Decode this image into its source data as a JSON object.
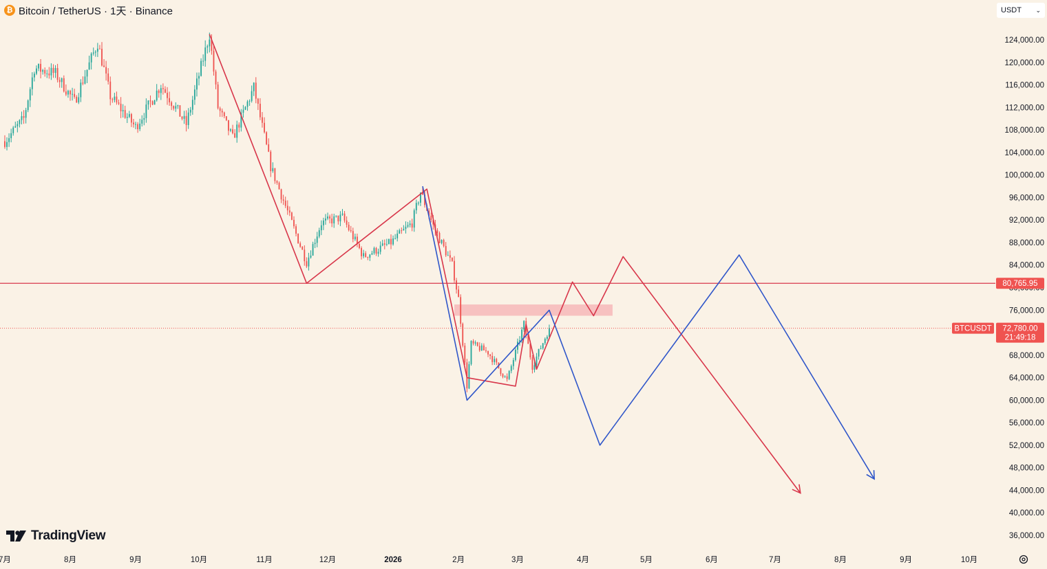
{
  "header": {
    "coin_symbol": "₿",
    "title": "Bitcoin / TetherUS · 1天 · Binance"
  },
  "currency_selector": {
    "value": "USDT"
  },
  "logo": {
    "text": "TradingView"
  },
  "colors": {
    "background": "#faf2e6",
    "bullish": "#26a69a",
    "bearish": "#ef5350",
    "red_projection": "#d8364a",
    "blue_projection": "#2f56c9",
    "zone": "#f6b8b8"
  },
  "chart_data": {
    "type": "candlestick",
    "symbol": "BTCUSDT",
    "ylim": [
      34000,
      129000
    ],
    "y_ticks": [
      36000,
      40000,
      44000,
      48000,
      52000,
      56000,
      60000,
      64000,
      68000,
      72000,
      76000,
      80000,
      84000,
      88000,
      92000,
      96000,
      100000,
      104000,
      108000,
      112000,
      116000,
      120000,
      124000
    ],
    "y_tick_labels": [
      "36,000.00",
      "40,000.00",
      "44,000.00",
      "48,000.00",
      "52,000.00",
      "56,000.00",
      "60,000.00",
      "64,000.00",
      "68,000.00",
      "72,000.00",
      "76,000.00",
      "80,000.00",
      "84,000.00",
      "88,000.00",
      "92,000.00",
      "96,000.00",
      "100,000.00",
      "104,000.00",
      "108,000.00",
      "112,000.00",
      "116,000.00",
      "120,000.00",
      "124,000.00"
    ],
    "x_labels": [
      {
        "label": "7月",
        "date": "2025-07-01"
      },
      {
        "label": "8月",
        "date": "2025-08-01"
      },
      {
        "label": "9月",
        "date": "2025-09-01"
      },
      {
        "label": "10月",
        "date": "2025-10-01"
      },
      {
        "label": "11月",
        "date": "2025-11-01"
      },
      {
        "label": "12月",
        "date": "2025-12-01"
      },
      {
        "label": "2026",
        "date": "2026-01-01",
        "bold": true
      },
      {
        "label": "2月",
        "date": "2026-02-01"
      },
      {
        "label": "3月",
        "date": "2026-03-01"
      },
      {
        "label": "4月",
        "date": "2026-04-01"
      },
      {
        "label": "5月",
        "date": "2026-05-01"
      },
      {
        "label": "6月",
        "date": "2026-06-01"
      },
      {
        "label": "7月",
        "date": "2026-07-01"
      },
      {
        "label": "8月",
        "date": "2026-08-01"
      },
      {
        "label": "9月",
        "date": "2026-09-01"
      },
      {
        "label": "10月",
        "date": "2026-10-01"
      }
    ],
    "horizontal_line": {
      "value": 80765.95,
      "label": "80,765.95"
    },
    "current_price": {
      "symbol_label": "BTCUSDT",
      "value": 72780,
      "label": "72,780.00",
      "countdown": "21:49:18"
    },
    "supply_zone": {
      "from_date": "2026-01-30",
      "to_date": "2026-04-15",
      "low": 75000,
      "high": 77000
    },
    "price_path": [
      {
        "date": "2025-07-01",
        "price": 106000
      },
      {
        "date": "2025-07-10",
        "price": 110000
      },
      {
        "date": "2025-07-15",
        "price": 119000
      },
      {
        "date": "2025-07-25",
        "price": 118000
      },
      {
        "date": "2025-08-03",
        "price": 113000
      },
      {
        "date": "2025-08-14",
        "price": 123500
      },
      {
        "date": "2025-08-20",
        "price": 114000
      },
      {
        "date": "2025-09-01",
        "price": 108500
      },
      {
        "date": "2025-09-13",
        "price": 116000
      },
      {
        "date": "2025-09-25",
        "price": 109000
      },
      {
        "date": "2025-10-06",
        "price": 125000
      },
      {
        "date": "2025-10-10",
        "price": 112000
      },
      {
        "date": "2025-10-17",
        "price": 106500
      },
      {
        "date": "2025-10-27",
        "price": 115500
      },
      {
        "date": "2025-11-04",
        "price": 101500
      },
      {
        "date": "2025-11-21",
        "price": 84500
      },
      {
        "date": "2025-11-28",
        "price": 91500
      },
      {
        "date": "2025-12-08",
        "price": 92500
      },
      {
        "date": "2025-12-18",
        "price": 85500
      },
      {
        "date": "2025-12-31",
        "price": 88000
      },
      {
        "date": "2026-01-10",
        "price": 91500
      },
      {
        "date": "2026-01-14",
        "price": 97000
      },
      {
        "date": "2026-01-20",
        "price": 91000
      },
      {
        "date": "2026-01-29",
        "price": 84000
      },
      {
        "date": "2026-02-01",
        "price": 78000
      },
      {
        "date": "2026-02-05",
        "price": 62500
      },
      {
        "date": "2026-02-07",
        "price": 70000
      },
      {
        "date": "2026-02-15",
        "price": 68500
      },
      {
        "date": "2026-02-24",
        "price": 63500
      },
      {
        "date": "2026-03-04",
        "price": 73500
      },
      {
        "date": "2026-03-08",
        "price": 66000
      },
      {
        "date": "2026-03-16",
        "price": 72780
      }
    ],
    "red_projection": [
      {
        "date": "2025-10-06",
        "price": 125000
      },
      {
        "date": "2025-11-21",
        "price": 80765.95
      },
      {
        "date": "2026-01-17",
        "price": 97500
      },
      {
        "date": "2026-02-05",
        "price": 64000
      },
      {
        "date": "2026-02-28",
        "price": 62500
      },
      {
        "date": "2026-03-05",
        "price": 73500
      },
      {
        "date": "2026-03-10",
        "price": 65500
      },
      {
        "date": "2026-03-27",
        "price": 81000
      },
      {
        "date": "2026-04-06",
        "price": 75000
      },
      {
        "date": "2026-04-20",
        "price": 85500
      },
      {
        "date": "2026-07-13",
        "price": 43500
      }
    ],
    "blue_projection": [
      {
        "date": "2026-01-15",
        "price": 98000
      },
      {
        "date": "2026-02-05",
        "price": 60000
      },
      {
        "date": "2026-03-16",
        "price": 76000
      },
      {
        "date": "2026-04-09",
        "price": 52000
      },
      {
        "date": "2026-06-14",
        "price": 85800
      },
      {
        "date": "2026-08-17",
        "price": 46000
      }
    ]
  }
}
